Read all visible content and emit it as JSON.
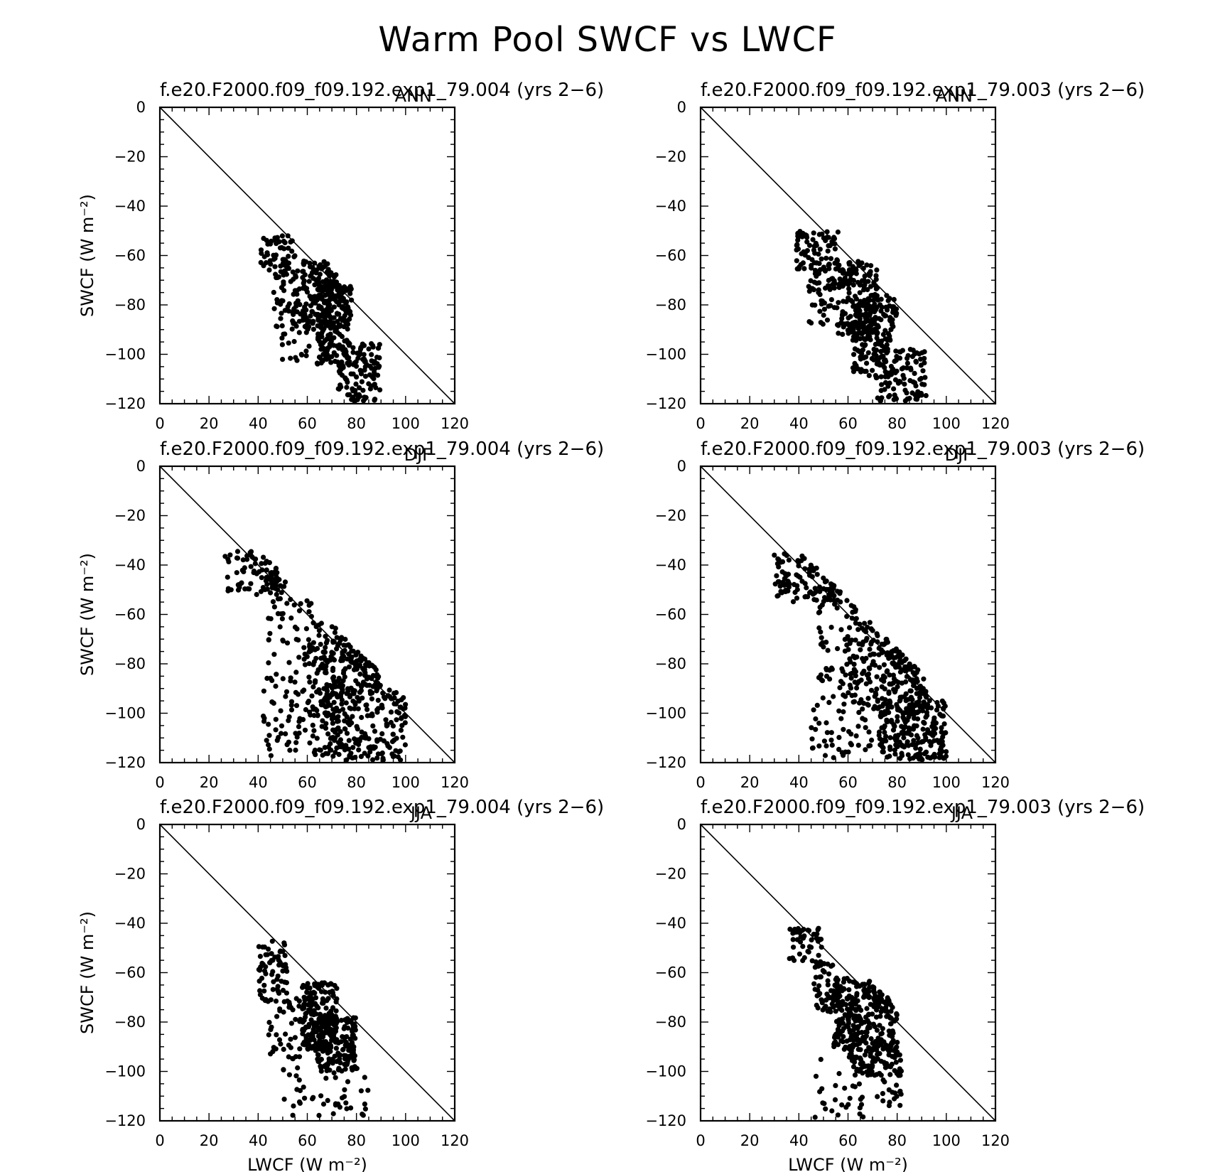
{
  "page": {
    "background": "#ffffff",
    "ink": "#000000"
  },
  "figure_title": "Warm Pool SWCF vs LWCF",
  "chart_data": [
    {
      "type": "scatter",
      "title": "f.e20.F2000.f09_f09.192.exp1_79.004 (yrs 2-6)",
      "season": "ANN",
      "xlabel": "",
      "ylabel": "SWCF (W m⁻²)",
      "xlim": [
        0,
        120
      ],
      "ylim": [
        -120,
        0
      ],
      "xticks": [
        0,
        20,
        40,
        60,
        80,
        100,
        120
      ],
      "yticks": [
        0,
        -20,
        -40,
        -60,
        -80,
        -100,
        -120
      ],
      "reference_line": [
        [
          0,
          0
        ],
        [
          120,
          -120
        ]
      ],
      "cluster": [
        {
          "x": [
            41,
            55
          ],
          "y": [
            -68,
            -52
          ],
          "n": 60
        },
        {
          "x": [
            46,
            60
          ],
          "y": [
            -92,
            -66
          ],
          "n": 60
        },
        {
          "x": [
            58,
            72
          ],
          "y": [
            -90,
            -62
          ],
          "n": 130
        },
        {
          "x": [
            64,
            78
          ],
          "y": [
            -104,
            -70
          ],
          "n": 190
        },
        {
          "x": [
            72,
            90
          ],
          "y": [
            -119,
            -95
          ],
          "n": 110
        },
        {
          "x": [
            48,
            70
          ],
          "y": [
            -103,
            -86
          ],
          "n": 25
        }
      ]
    },
    {
      "type": "scatter",
      "title": "f.e20.F2000.f09_f09.192.exp1_79.003 (yrs 2-6)",
      "season": "ANN",
      "xlabel": "",
      "ylabel": "",
      "xlim": [
        0,
        120
      ],
      "ylim": [
        -120,
        0
      ],
      "xticks": [
        0,
        20,
        40,
        60,
        80,
        100,
        120
      ],
      "yticks": [
        0,
        -20,
        -40,
        -60,
        -80,
        -100,
        -120
      ],
      "reference_line": [
        [
          0,
          0
        ],
        [
          120,
          -120
        ]
      ],
      "cluster": [
        {
          "x": [
            39,
            56
          ],
          "y": [
            -66,
            -50
          ],
          "n": 80
        },
        {
          "x": [
            44,
            58
          ],
          "y": [
            -90,
            -66
          ],
          "n": 55
        },
        {
          "x": [
            56,
            72
          ],
          "y": [
            -92,
            -62
          ],
          "n": 160
        },
        {
          "x": [
            62,
            80
          ],
          "y": [
            -110,
            -76
          ],
          "n": 190
        },
        {
          "x": [
            72,
            92
          ],
          "y": [
            -119,
            -98
          ],
          "n": 95
        }
      ]
    },
    {
      "type": "scatter",
      "title": "f.e20.F2000.f09_f09.192.exp1_79.004 (yrs 2-6)",
      "season": "DJF",
      "xlabel": "",
      "ylabel": "SWCF (W m⁻²)",
      "xlim": [
        0,
        120
      ],
      "ylim": [
        -120,
        0
      ],
      "xticks": [
        0,
        20,
        40,
        60,
        80,
        100,
        120
      ],
      "yticks": [
        0,
        -20,
        -40,
        -60,
        -80,
        -100,
        -120
      ],
      "reference_line": [
        [
          0,
          0
        ],
        [
          120,
          -120
        ]
      ],
      "cluster": [
        {
          "x": [
            26,
            48
          ],
          "y": [
            -52,
            -34
          ],
          "n": 80
        },
        {
          "x": [
            44,
            90
          ],
          "y": [
            -90,
            -45
          ],
          "n": 160
        },
        {
          "x": [
            42,
            70
          ],
          "y": [
            -118,
            -85
          ],
          "n": 90
        },
        {
          "x": [
            66,
            100
          ],
          "y": [
            -119,
            -88
          ],
          "n": 230
        },
        {
          "x": [
            58,
            82
          ],
          "y": [
            -100,
            -70
          ],
          "n": 90
        }
      ]
    },
    {
      "type": "scatter",
      "title": "f.e20.F2000.f09_f09.192.exp1_79.003 (yrs 2-6)",
      "season": "DJF",
      "xlabel": "",
      "ylabel": "",
      "xlim": [
        0,
        120
      ],
      "ylim": [
        -120,
        0
      ],
      "xticks": [
        0,
        20,
        40,
        60,
        80,
        100,
        120
      ],
      "yticks": [
        0,
        -20,
        -40,
        -60,
        -80,
        -100,
        -120
      ],
      "reference_line": [
        [
          0,
          0
        ],
        [
          120,
          -120
        ]
      ],
      "cluster": [
        {
          "x": [
            30,
            55
          ],
          "y": [
            -55,
            -35
          ],
          "n": 90
        },
        {
          "x": [
            48,
            92
          ],
          "y": [
            -95,
            -40
          ],
          "n": 170
        },
        {
          "x": [
            45,
            72
          ],
          "y": [
            -118,
            -92
          ],
          "n": 55
        },
        {
          "x": [
            72,
            100
          ],
          "y": [
            -119,
            -94
          ],
          "n": 230
        },
        {
          "x": [
            60,
            88
          ],
          "y": [
            -100,
            -70
          ],
          "n": 110
        }
      ]
    },
    {
      "type": "scatter",
      "title": "f.e20.F2000.f09_f09.192.exp1_79.004 (yrs 2-6)",
      "season": "JJA",
      "xlabel": "LWCF (W m⁻²)",
      "ylabel": "SWCF (W m⁻²)",
      "xlim": [
        0,
        120
      ],
      "ylim": [
        -120,
        0
      ],
      "xticks": [
        0,
        20,
        40,
        60,
        80,
        100,
        120
      ],
      "yticks": [
        0,
        -20,
        -40,
        -60,
        -80,
        -100,
        -120
      ],
      "reference_line": [
        [
          0,
          0
        ],
        [
          120,
          -120
        ]
      ],
      "cluster": [
        {
          "x": [
            40,
            52
          ],
          "y": [
            -72,
            -47
          ],
          "n": 70
        },
        {
          "x": [
            44,
            58
          ],
          "y": [
            -95,
            -70
          ],
          "n": 40
        },
        {
          "x": [
            58,
            72
          ],
          "y": [
            -92,
            -64
          ],
          "n": 200
        },
        {
          "x": [
            64,
            80
          ],
          "y": [
            -100,
            -78
          ],
          "n": 150
        },
        {
          "x": [
            50,
            85
          ],
          "y": [
            -118,
            -98
          ],
          "n": 45
        }
      ]
    },
    {
      "type": "scatter",
      "title": "f.e20.F2000.f09_f09.192.exp1_79.003 (yrs 2-6)",
      "season": "JJA",
      "xlabel": "LWCF (W m⁻²)",
      "ylabel": "",
      "xlim": [
        0,
        120
      ],
      "ylim": [
        -120,
        0
      ],
      "xticks": [
        0,
        20,
        40,
        60,
        80,
        100,
        120
      ],
      "yticks": [
        0,
        -20,
        -40,
        -60,
        -80,
        -100,
        -120
      ],
      "reference_line": [
        [
          0,
          0
        ],
        [
          120,
          -120
        ]
      ],
      "cluster": [
        {
          "x": [
            36,
            50
          ],
          "y": [
            -56,
            -42
          ],
          "n": 45
        },
        {
          "x": [
            46,
            58
          ],
          "y": [
            -76,
            -56
          ],
          "n": 60
        },
        {
          "x": [
            54,
            80
          ],
          "y": [
            -92,
            -62
          ],
          "n": 280
        },
        {
          "x": [
            60,
            82
          ],
          "y": [
            -102,
            -88
          ],
          "n": 90
        },
        {
          "x": [
            46,
            82
          ],
          "y": [
            -119,
            -94
          ],
          "n": 50
        }
      ]
    }
  ]
}
